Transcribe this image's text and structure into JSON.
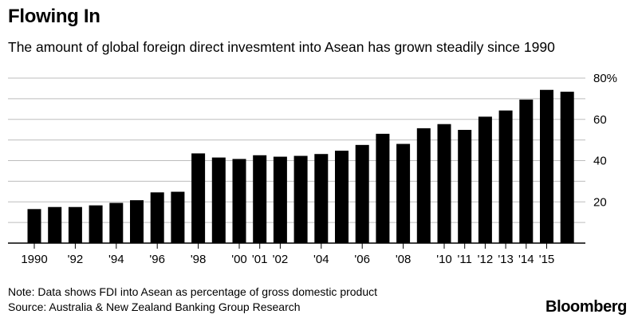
{
  "title": "Flowing In",
  "subtitle": "The amount of global foreign direct invesmtent into Asean has grown steadily since 1990",
  "note": "Note: Data shows FDI into Asean as percentage of gross domestic product",
  "source": "Source: Australia & New Zealand Banking Group Research",
  "brand": "Bloomberg",
  "chart_data": {
    "type": "bar",
    "categories": [
      "1990",
      "1991",
      "1992",
      "1993",
      "1994",
      "1995",
      "1996",
      "1997",
      "1998",
      "1999",
      "2000",
      "2001",
      "2002",
      "2003",
      "2004",
      "2005",
      "2006",
      "2007",
      "2008",
      "2009",
      "2010",
      "2011",
      "2012",
      "2013",
      "2014",
      "2015",
      "2016"
    ],
    "values": [
      16.5,
      17.5,
      17.5,
      18.3,
      19.5,
      20.8,
      24.6,
      24.9,
      43.5,
      41.5,
      40.8,
      42.6,
      41.9,
      42.3,
      43.2,
      44.8,
      47.6,
      53.0,
      48.1,
      55.7,
      57.7,
      54.9,
      61.3,
      64.3,
      69.6,
      74.3,
      73.4
    ],
    "x_tick_labels": [
      "1990",
      "'92",
      "'94",
      "'96",
      "'98",
      "'00",
      "'01",
      "'02",
      "'04",
      "'06",
      "'08",
      "'10",
      "'11",
      "'12",
      "'13",
      "'14",
      "'15"
    ],
    "x_tick_positions": [
      "1990",
      "1992",
      "1994",
      "1996",
      "1998",
      "2000",
      "2001",
      "2002",
      "2004",
      "2006",
      "2008",
      "2010",
      "2011",
      "2012",
      "2013",
      "2014",
      "2015"
    ],
    "y_ticks": [
      20,
      40,
      60,
      80
    ],
    "y_tick_labels": [
      "20",
      "40",
      "60",
      "80%"
    ],
    "ylim": [
      0,
      80
    ],
    "grid": true,
    "bar_color": "#000000",
    "grid_color": "#bdbdbd"
  }
}
